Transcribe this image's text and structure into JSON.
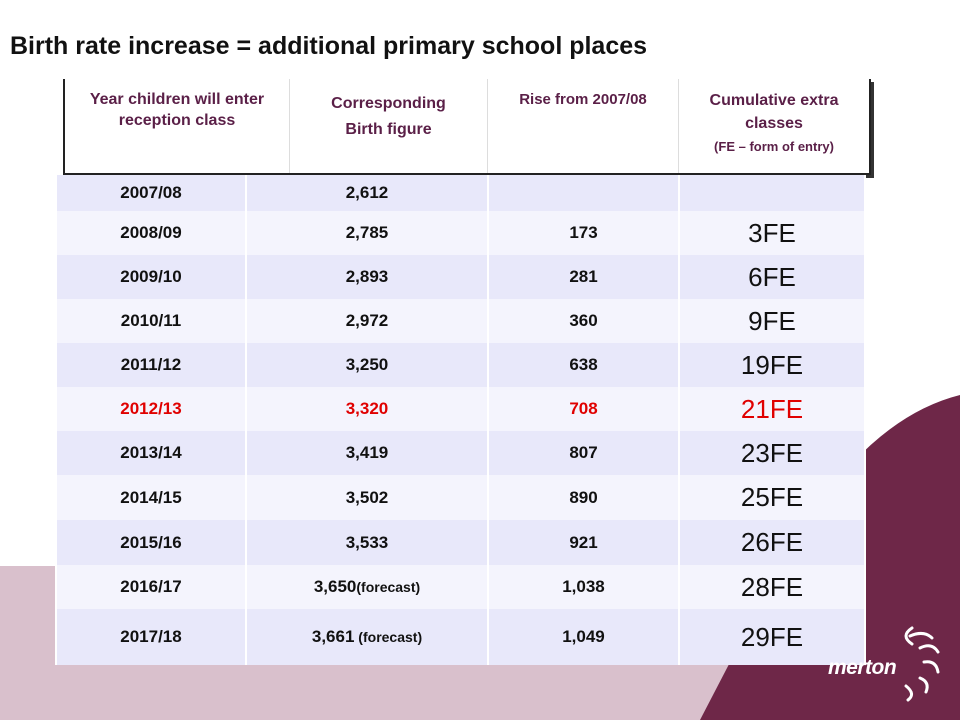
{
  "title": "Birth rate increase = additional primary school places",
  "header": {
    "col1": "Year children will enter reception class",
    "col2_line1": "Corresponding",
    "col2_line2": "Birth figure",
    "col3": "Rise from 2007/08",
    "col4_line1": "Cumulative extra classes",
    "col4_line2": "(FE – form of entry)"
  },
  "rows": [
    {
      "year": "2007/08",
      "birth": "2,612",
      "note": "",
      "rise": "",
      "fe": ""
    },
    {
      "year": "2008/09",
      "birth": "2,785",
      "note": "",
      "rise": "173",
      "fe": "3FE"
    },
    {
      "year": "2009/10",
      "birth": "2,893",
      "note": "",
      "rise": "281",
      "fe": "6FE"
    },
    {
      "year": "2010/11",
      "birth": "2,972",
      "note": "",
      "rise": "360",
      "fe": "9FE"
    },
    {
      "year": "2011/12",
      "birth": "3,250",
      "note": "",
      "rise": "638",
      "fe": "19FE"
    },
    {
      "year": "2012/13",
      "birth": "3,320",
      "note": "",
      "rise": "708",
      "fe": "21FE",
      "highlight": true
    },
    {
      "year": "2013/14",
      "birth": "3,419",
      "note": "",
      "rise": "807",
      "fe": "23FE"
    },
    {
      "year": "2014/15",
      "birth": "3,502",
      "note": "",
      "rise": "890",
      "fe": "25FE"
    },
    {
      "year": "2015/16",
      "birth": "3,533",
      "note": "",
      "rise": "921",
      "fe": "26FE"
    },
    {
      "year": "2016/17",
      "birth": "3,650",
      "note": "(forecast)",
      "rise": "1,038",
      "fe": "28FE"
    },
    {
      "year": "2017/18",
      "birth": "3,661",
      "note": " (forecast)",
      "rise": "1,049",
      "fe": "29FE"
    }
  ],
  "logo": {
    "text": "merton",
    "icon": "merton-swirl-icon"
  },
  "colors": {
    "band": "#d9c0cc",
    "maroon": "#6e2748",
    "header_text": "#5a1f47",
    "highlight": "#e00000",
    "row_odd": "#e8e8fa",
    "row_even": "#f4f4fd"
  }
}
